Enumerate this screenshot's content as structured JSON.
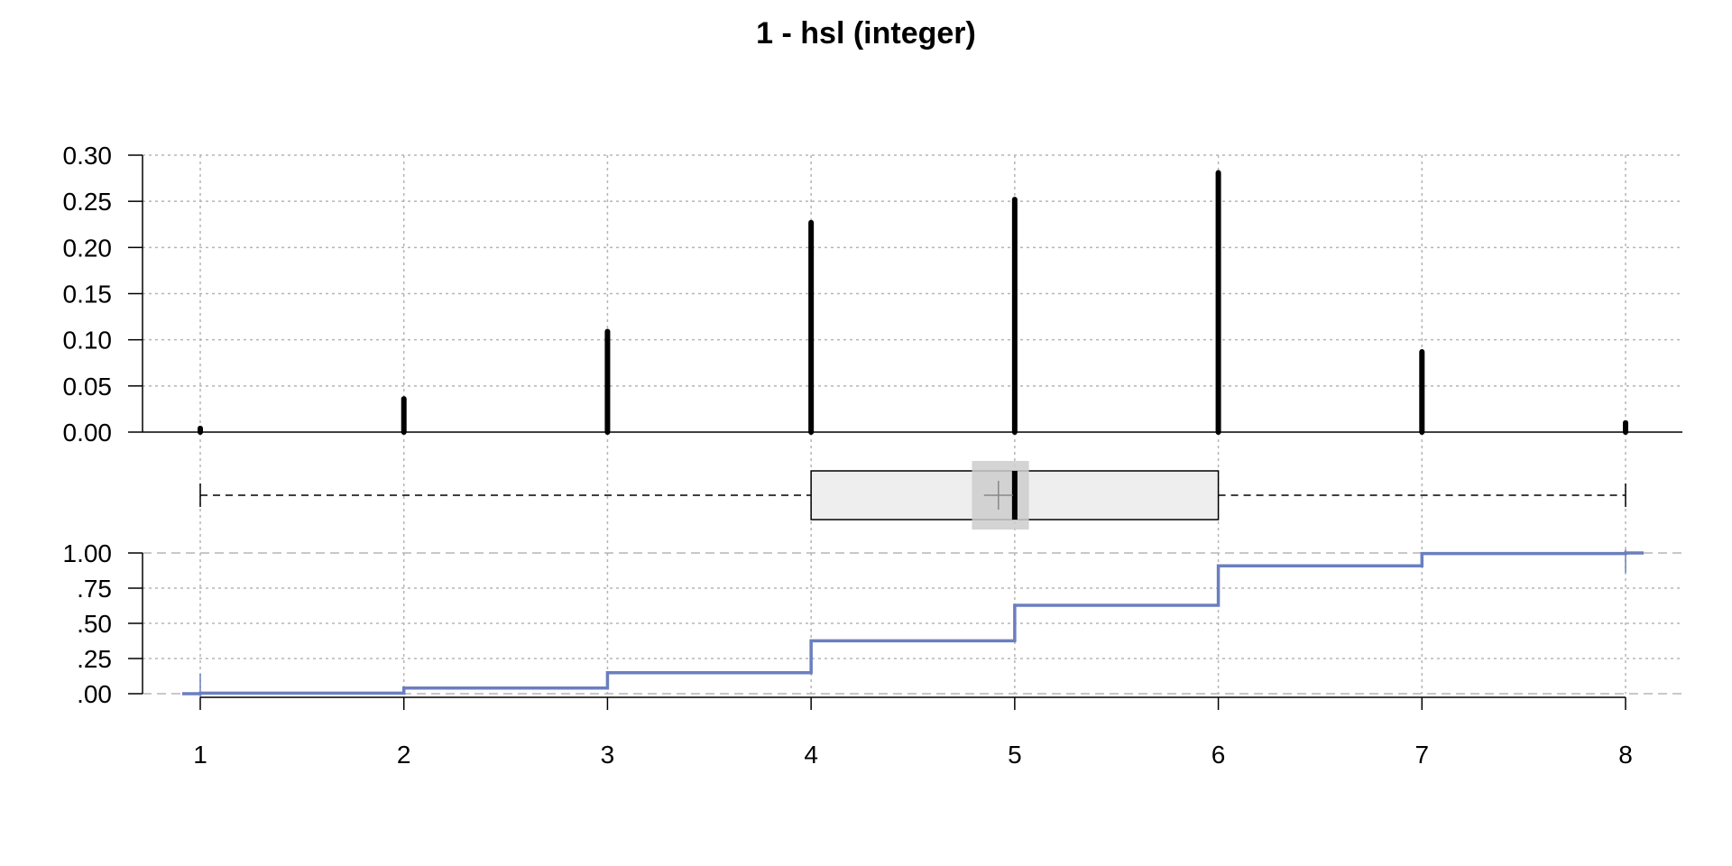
{
  "chart_data": {
    "title": "1 - hsl (integer)",
    "type": "bar",
    "x": [
      1,
      2,
      3,
      4,
      5,
      6,
      7,
      8
    ],
    "xlim": [
      1,
      8
    ],
    "x_tick_labels": [
      "1",
      "2",
      "3",
      "4",
      "5",
      "6",
      "7",
      "8"
    ],
    "grid": true,
    "panels": [
      {
        "name": "proportion",
        "type": "bar",
        "x": [
          1,
          2,
          3,
          4,
          5,
          6,
          7,
          8
        ],
        "values": [
          0.004,
          0.036,
          0.109,
          0.227,
          0.252,
          0.281,
          0.087,
          0.01
        ],
        "ylim": [
          0,
          0.3
        ],
        "y_tick_labels": [
          "0.00",
          "0.05",
          "0.10",
          "0.15",
          "0.20",
          "0.25",
          "0.30"
        ],
        "y_ticks": [
          0,
          0.05,
          0.1,
          0.15,
          0.2,
          0.25,
          0.3
        ]
      },
      {
        "name": "boxplot",
        "type": "box",
        "min": 1,
        "q1": 4,
        "median": 5,
        "q3": 6,
        "max": 8,
        "mean": 4.92,
        "mean_ci": [
          4.79,
          5.07
        ]
      },
      {
        "name": "ecdf",
        "type": "line",
        "x": [
          1,
          2,
          3,
          4,
          5,
          6,
          7,
          8
        ],
        "values": [
          0.004,
          0.04,
          0.149,
          0.376,
          0.628,
          0.909,
          0.996,
          1.0
        ],
        "ylim": [
          0,
          1
        ],
        "y_tick_labels": [
          ".00",
          ".25",
          ".50",
          ".75",
          "1.00"
        ],
        "y_ticks": [
          0,
          0.25,
          0.5,
          0.75,
          1.0
        ]
      }
    ],
    "colors": {
      "bars": "#000000",
      "ecdf": "#6b7fbf",
      "box_fill": "#eeeeee",
      "ci_fill": "#cccccc",
      "grid": "#b5b5b5"
    }
  }
}
